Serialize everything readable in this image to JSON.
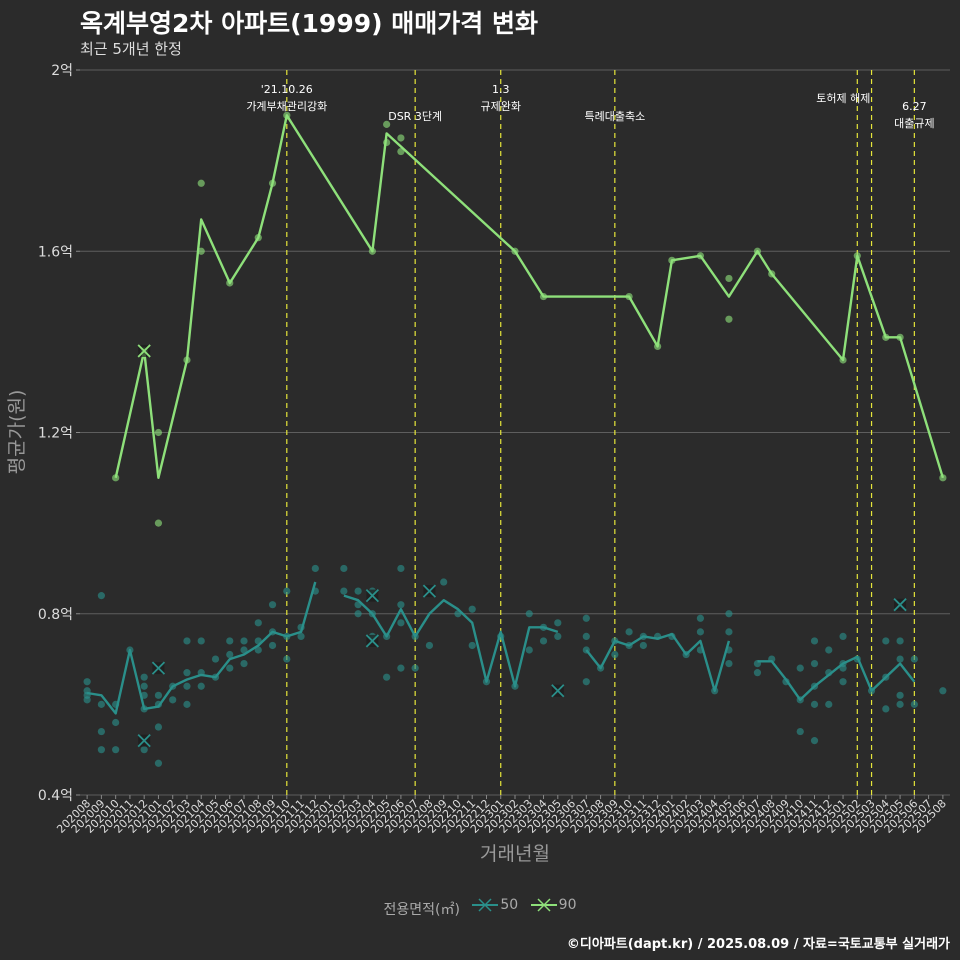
{
  "title": "옥계부영2차 아파트(1999) 매매가격 변화",
  "subtitle": "최근 5개년 한정",
  "caption": "©디아파트(dapt.kr) / 2025.08.09 / 자료=국토교통부 실거래가",
  "legend": {
    "title": "전용면적(㎡)",
    "items": [
      {
        "label": "50",
        "color": "#2a8f8a"
      },
      {
        "label": "90",
        "color": "#8ee07a"
      }
    ]
  },
  "chart_data": {
    "type": "line",
    "xlabel": "거래년월",
    "ylabel": "평균가(원)",
    "ylim": [
      0.4,
      2.0
    ],
    "y_ticks": [
      {
        "value": 0.4,
        "label": "0.4억"
      },
      {
        "value": 0.8,
        "label": "0.8억"
      },
      {
        "value": 1.2,
        "label": "1.2억"
      },
      {
        "value": 1.6,
        "label": "1.6억"
      },
      {
        "value": 2.0,
        "label": "2억"
      }
    ],
    "categories": [
      "202008",
      "202009",
      "202010",
      "202011",
      "202012",
      "202101",
      "202102",
      "202103",
      "202104",
      "202105",
      "202106",
      "202107",
      "202108",
      "202109",
      "202110",
      "202111",
      "202112",
      "202201",
      "202202",
      "202203",
      "202204",
      "202205",
      "202206",
      "202207",
      "202208",
      "202209",
      "202210",
      "202211",
      "202212",
      "202301",
      "202302",
      "202303",
      "202304",
      "202305",
      "202306",
      "202307",
      "202308",
      "202309",
      "202310",
      "202311",
      "202312",
      "202401",
      "202402",
      "202403",
      "202404",
      "202405",
      "202406",
      "202407",
      "202408",
      "202409",
      "202410",
      "202411",
      "202412",
      "202501",
      "202502",
      "202503",
      "202504",
      "202505",
      "202506",
      "202507",
      "202508"
    ],
    "tick_labels": [
      "202008",
      "202009",
      "202010",
      "202011",
      "202012",
      "202101",
      "202102",
      "202103",
      "202104",
      "202105",
      "202106",
      "202107",
      "202108",
      "202109",
      "202110",
      "202111",
      "202112",
      "202201",
      "202202",
      "202203",
      "202204",
      "202205",
      "202206",
      "202207",
      "202208",
      "202209",
      "202210",
      "202211",
      "202212",
      "202301",
      "202302",
      "202303",
      "202304",
      "202305",
      "202306",
      "202307",
      "202308",
      "202309",
      "202310",
      "202311",
      "202312",
      "202401",
      "202402",
      "202403",
      "202404",
      "202405",
      "202406",
      "202407",
      "202408",
      "202409",
      "202410",
      "202411",
      "202412",
      "202501",
      "202502",
      "202503",
      "202504",
      "202505",
      "202506",
      "202507",
      "202508"
    ],
    "events": [
      {
        "x": 14.0,
        "label": "'21.10.26\n가계부채관리강화"
      },
      {
        "x": 23.0,
        "label": "DSR 3단계"
      },
      {
        "x": 29.0,
        "label": "1.3\n규제완화"
      },
      {
        "x": 37.0,
        "label": "특례대출축소"
      },
      {
        "x": 54.0,
        "label": "토허제 해제"
      },
      {
        "x": 55.0,
        "label": ""
      },
      {
        "x": 58.0,
        "label": "6.27\n대출규제"
      }
    ],
    "series": [
      {
        "name": "50",
        "color": "#2a8f8a",
        "line": [
          [
            0,
            0.625
          ],
          [
            1,
            0.62
          ],
          [
            2,
            0.58
          ],
          [
            3,
            0.72
          ],
          [
            4,
            0.59
          ],
          [
            5,
            0.595
          ],
          [
            6,
            0.64
          ],
          [
            7,
            0.655
          ],
          [
            8,
            0.665
          ],
          [
            9,
            0.66
          ],
          [
            10,
            0.7
          ],
          [
            11,
            0.71
          ],
          [
            12,
            0.73
          ],
          [
            13,
            0.76
          ],
          [
            14,
            0.75
          ],
          [
            15,
            0.76
          ],
          [
            16,
            0.87
          ],
          null,
          [
            18,
            0.84
          ],
          [
            19,
            0.83
          ],
          [
            20,
            0.8
          ],
          [
            21,
            0.75
          ],
          [
            22,
            0.81
          ],
          [
            23,
            0.75
          ],
          [
            24,
            0.8
          ],
          [
            25,
            0.83
          ],
          [
            26,
            0.81
          ],
          [
            27,
            0.78
          ],
          [
            28,
            0.65
          ],
          [
            29,
            0.76
          ],
          [
            30,
            0.64
          ],
          [
            31,
            0.77
          ],
          [
            32,
            0.77
          ],
          [
            33,
            0.76
          ],
          null,
          [
            35,
            0.72
          ],
          [
            36,
            0.68
          ],
          [
            37,
            0.74
          ],
          [
            38,
            0.73
          ],
          [
            39,
            0.75
          ],
          [
            40,
            0.745
          ],
          [
            41,
            0.755
          ],
          [
            42,
            0.71
          ],
          [
            43,
            0.74
          ],
          [
            44,
            0.63
          ],
          [
            45,
            0.74
          ],
          null,
          [
            47,
            0.695
          ],
          [
            48,
            0.695
          ],
          [
            49,
            0.655
          ],
          [
            50,
            0.61
          ],
          [
            51,
            0.64
          ],
          [
            52,
            0.665
          ],
          [
            53,
            0.69
          ],
          [
            54,
            0.705
          ],
          [
            55,
            0.63
          ],
          [
            56,
            0.66
          ],
          [
            57,
            0.69
          ],
          [
            58,
            0.65
          ]
        ],
        "points": [
          [
            0,
            0.61
          ],
          [
            0,
            0.63
          ],
          [
            0,
            0.62
          ],
          [
            0,
            0.65
          ],
          [
            1,
            0.5
          ],
          [
            1,
            0.54
          ],
          [
            1,
            0.6
          ],
          [
            1,
            0.84
          ],
          [
            2,
            0.5
          ],
          [
            2,
            0.56
          ],
          [
            2,
            0.6
          ],
          [
            3,
            0.72
          ],
          [
            4,
            0.5
          ],
          [
            4,
            0.59
          ],
          [
            4,
            0.62
          ],
          [
            4,
            0.64
          ],
          [
            4,
            0.66
          ],
          [
            5,
            0.47
          ],
          [
            5,
            0.55
          ],
          [
            5,
            0.6
          ],
          [
            5,
            0.62
          ],
          [
            6,
            0.61
          ],
          [
            6,
            0.64
          ],
          [
            7,
            0.6
          ],
          [
            7,
            0.64
          ],
          [
            7,
            0.67
          ],
          [
            7,
            0.74
          ],
          [
            8,
            0.64
          ],
          [
            8,
            0.67
          ],
          [
            8,
            0.74
          ],
          [
            9,
            0.66
          ],
          [
            9,
            0.7
          ],
          [
            10,
            0.68
          ],
          [
            10,
            0.71
          ],
          [
            10,
            0.74
          ],
          [
            11,
            0.69
          ],
          [
            11,
            0.72
          ],
          [
            11,
            0.74
          ],
          [
            12,
            0.72
          ],
          [
            12,
            0.74
          ],
          [
            12,
            0.78
          ],
          [
            13,
            0.73
          ],
          [
            13,
            0.76
          ],
          [
            13,
            0.82
          ],
          [
            14,
            0.7
          ],
          [
            14,
            0.75
          ],
          [
            14,
            0.85
          ],
          [
            15,
            0.75
          ],
          [
            15,
            0.77
          ],
          [
            16,
            0.85
          ],
          [
            16,
            0.9
          ],
          [
            18,
            0.9
          ],
          [
            18,
            0.85
          ],
          [
            19,
            0.8
          ],
          [
            19,
            0.82
          ],
          [
            19,
            0.85
          ],
          [
            20,
            0.75
          ],
          [
            20,
            0.8
          ],
          [
            20,
            0.85
          ],
          [
            21,
            0.66
          ],
          [
            21,
            0.75
          ],
          [
            22,
            0.68
          ],
          [
            22,
            0.78
          ],
          [
            22,
            0.82
          ],
          [
            22,
            0.9
          ],
          [
            23,
            0.68
          ],
          [
            23,
            0.75
          ],
          [
            24,
            0.73
          ],
          [
            25,
            0.87
          ],
          [
            26,
            0.8
          ],
          [
            27,
            0.73
          ],
          [
            27,
            0.81
          ],
          [
            28,
            0.65
          ],
          [
            29,
            0.75
          ],
          [
            30,
            0.64
          ],
          [
            31,
            0.72
          ],
          [
            31,
            0.8
          ],
          [
            32,
            0.74
          ],
          [
            32,
            0.77
          ],
          [
            33,
            0.75
          ],
          [
            33,
            0.78
          ],
          [
            35,
            0.65
          ],
          [
            35,
            0.72
          ],
          [
            35,
            0.75
          ],
          [
            35,
            0.79
          ],
          [
            36,
            0.68
          ],
          [
            37,
            0.71
          ],
          [
            37,
            0.74
          ],
          [
            38,
            0.73
          ],
          [
            38,
            0.76
          ],
          [
            39,
            0.73
          ],
          [
            39,
            0.75
          ],
          [
            40,
            0.75
          ],
          [
            41,
            0.75
          ],
          [
            42,
            0.71
          ],
          [
            43,
            0.72
          ],
          [
            43,
            0.76
          ],
          [
            43,
            0.79
          ],
          [
            44,
            0.63
          ],
          [
            45,
            0.69
          ],
          [
            45,
            0.72
          ],
          [
            45,
            0.76
          ],
          [
            45,
            0.8
          ],
          [
            47,
            0.67
          ],
          [
            47,
            0.69
          ],
          [
            48,
            0.7
          ],
          [
            49,
            0.65
          ],
          [
            50,
            0.54
          ],
          [
            50,
            0.61
          ],
          [
            50,
            0.68
          ],
          [
            51,
            0.52
          ],
          [
            51,
            0.6
          ],
          [
            51,
            0.64
          ],
          [
            51,
            0.69
          ],
          [
            51,
            0.74
          ],
          [
            52,
            0.6
          ],
          [
            52,
            0.67
          ],
          [
            52,
            0.72
          ],
          [
            53,
            0.65
          ],
          [
            53,
            0.68
          ],
          [
            53,
            0.69
          ],
          [
            53,
            0.75
          ],
          [
            54,
            0.7
          ],
          [
            55,
            0.63
          ],
          [
            56,
            0.59
          ],
          [
            56,
            0.66
          ],
          [
            56,
            0.74
          ],
          [
            57,
            0.6
          ],
          [
            57,
            0.62
          ],
          [
            57,
            0.7
          ],
          [
            57,
            0.74
          ],
          [
            58,
            0.6
          ],
          [
            58,
            0.7
          ],
          [
            60,
            0.63
          ]
        ],
        "crosses": [
          [
            4,
            0.52
          ],
          [
            5,
            0.68
          ],
          [
            20,
            0.74
          ],
          [
            20,
            0.84
          ],
          [
            24,
            0.85
          ],
          [
            33,
            0.63
          ],
          [
            57,
            0.82
          ]
        ]
      },
      {
        "name": "90",
        "color": "#8ee07a",
        "line": [
          [
            2,
            1.1
          ],
          [
            4,
            1.38
          ],
          [
            5,
            1.1
          ],
          [
            7,
            1.36
          ],
          [
            8,
            1.67
          ],
          [
            10,
            1.53
          ],
          [
            12,
            1.63
          ],
          [
            13,
            1.75
          ],
          [
            14,
            1.9
          ],
          [
            20,
            1.6
          ],
          [
            21,
            1.86
          ],
          [
            30,
            1.6
          ],
          [
            32,
            1.5
          ],
          [
            38,
            1.5
          ],
          [
            40,
            1.39
          ],
          [
            41,
            1.58
          ],
          [
            43,
            1.59
          ],
          [
            45,
            1.5
          ],
          [
            47,
            1.6
          ],
          [
            48,
            1.55
          ],
          [
            53,
            1.36
          ],
          [
            54,
            1.59
          ],
          [
            56,
            1.41
          ],
          [
            57,
            1.41
          ],
          [
            60,
            1.1
          ]
        ],
        "points": [
          [
            2,
            1.1
          ],
          [
            4,
            1.38
          ],
          [
            5,
            1.0
          ],
          [
            5,
            1.2
          ],
          [
            7,
            1.36
          ],
          [
            8,
            1.6
          ],
          [
            8,
            1.75
          ],
          [
            10,
            1.53
          ],
          [
            12,
            1.63
          ],
          [
            13,
            1.75
          ],
          [
            14,
            1.9
          ],
          [
            20,
            1.6
          ],
          [
            21,
            1.84
          ],
          [
            21,
            1.88
          ],
          [
            22,
            1.82
          ],
          [
            22,
            1.85
          ],
          [
            30,
            1.6
          ],
          [
            32,
            1.5
          ],
          [
            38,
            1.5
          ],
          [
            40,
            1.39
          ],
          [
            41,
            1.58
          ],
          [
            43,
            1.59
          ],
          [
            45,
            1.45
          ],
          [
            45,
            1.54
          ],
          [
            47,
            1.6
          ],
          [
            48,
            1.55
          ],
          [
            53,
            1.36
          ],
          [
            54,
            1.59
          ],
          [
            56,
            1.41
          ],
          [
            57,
            1.41
          ],
          [
            60,
            1.1
          ]
        ],
        "crosses": [
          [
            4,
            1.38
          ]
        ]
      }
    ]
  }
}
